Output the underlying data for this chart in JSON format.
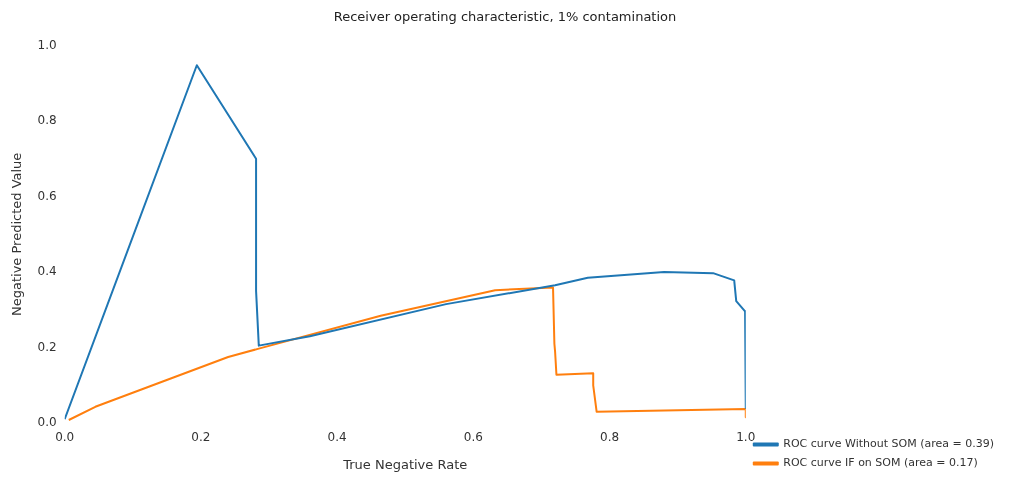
{
  "chart_data": {
    "type": "line",
    "title": "Receiver operating characteristic, 1% contamination",
    "xlabel": "True Negative Rate",
    "ylabel": "Negative Predicted Value",
    "xlim": [
      0,
      1
    ],
    "ylim": [
      0,
      1
    ],
    "xticks": [
      {
        "value": 0,
        "label": "0.0"
      },
      0.2,
      0.4,
      0.6,
      0.8,
      {
        "value": 1,
        "label": "1.0"
      }
    ],
    "yticks": [
      {
        "value": 0,
        "label": "0.0"
      },
      0.2,
      0.4,
      0.6,
      0.8,
      {
        "value": 1,
        "label": "1.0"
      }
    ],
    "grid": false,
    "legend": "bottom right",
    "marker": "none",
    "line_style": "solid",
    "series": [
      {
        "name": "ROC curve Without SOM (area = 0.39)",
        "color": "#1f77b4",
        "x": [
          0,
          0.194,
          0.281,
          0.281,
          0.285,
          0.36,
          0.56,
          0.72,
          0.768,
          0.88,
          0.952,
          0.983,
          0.986,
          0.999,
          1.0
        ],
        "values": [
          0.01,
          0.948,
          0.7,
          0.35,
          0.205,
          0.23,
          0.315,
          0.365,
          0.385,
          0.4,
          0.397,
          0.378,
          0.323,
          0.296,
          0.04
        ]
      },
      {
        "name": "ROC curve IF on SOM (area = 0.17)",
        "color": "#ff7f0e",
        "x": [
          0.006,
          0.045,
          0.24,
          0.285,
          0.464,
          0.632,
          0.717,
          0.719,
          0.72,
          0.722,
          0.776,
          0.776,
          0.781,
          1.0,
          1.0
        ],
        "values": [
          0.008,
          0.043,
          0.175,
          0.197,
          0.284,
          0.352,
          0.359,
          0.21,
          0.19,
          0.128,
          0.132,
          0.1,
          0.03,
          0.037,
          0.015
        ]
      }
    ]
  }
}
